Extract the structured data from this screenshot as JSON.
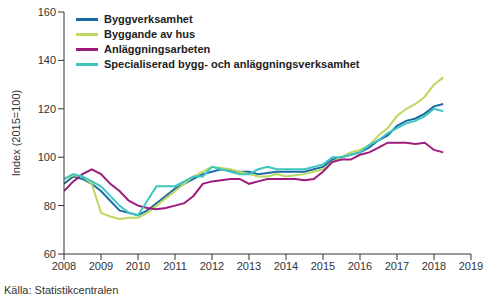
{
  "chart_data": {
    "type": "line",
    "y_label": "Index (2015=100)",
    "source": "Källa: Statistikcentralen",
    "x": [
      2008,
      2008.25,
      2008.5,
      2008.75,
      2009,
      2009.25,
      2009.5,
      2009.75,
      2010,
      2010.25,
      2010.5,
      2010.75,
      2011,
      2011.25,
      2011.5,
      2011.75,
      2012,
      2012.25,
      2012.5,
      2012.75,
      2013,
      2013.25,
      2013.5,
      2013.75,
      2014,
      2014.25,
      2014.5,
      2014.75,
      2015,
      2015.25,
      2015.5,
      2015.75,
      2016,
      2016.25,
      2016.5,
      2016.75,
      2017,
      2017.25,
      2017.5,
      2017.75,
      2018,
      2018.25
    ],
    "series": [
      {
        "name": "Byggverksamhet",
        "color": "#1b6aa5",
        "values": [
          89,
          92,
          91,
          89,
          86,
          82,
          78,
          77,
          76,
          78,
          81,
          84,
          87,
          89,
          91,
          93,
          94,
          95,
          94.5,
          94,
          94,
          93,
          93.5,
          94,
          94,
          94,
          94,
          95,
          96,
          99,
          100,
          101,
          102,
          104,
          107,
          109,
          113,
          115,
          116,
          118,
          121,
          122
        ]
      },
      {
        "name": "Byggande av hus",
        "color": "#bcd85f",
        "values": [
          91,
          92.5,
          92,
          89,
          77,
          75.5,
          74.5,
          75,
          75,
          77,
          80,
          83,
          86,
          89,
          92,
          94,
          96,
          95.5,
          95,
          94,
          93,
          92,
          92,
          93,
          92,
          92.5,
          93,
          94,
          95,
          98,
          100,
          102,
          103,
          105,
          109,
          112,
          117,
          120,
          122,
          125,
          130,
          133
        ]
      },
      {
        "name": "Anläggningsarbeten",
        "color": "#9e1b7e",
        "values": [
          86,
          90,
          93,
          95,
          93,
          89,
          86,
          82,
          80,
          79,
          78.5,
          79,
          80,
          81,
          84,
          89,
          90,
          90.5,
          91,
          91,
          89,
          90,
          91,
          91,
          91,
          91,
          90.5,
          91,
          94,
          98,
          99,
          99,
          101,
          102,
          104,
          106,
          106,
          106,
          105.5,
          106,
          103,
          102
        ]
      },
      {
        "name": "Specialiserad bygg- och anläggningsverksamhet",
        "color": "#3cc6c0",
        "values": [
          91,
          93,
          92,
          90,
          88,
          84,
          80,
          77,
          76,
          82,
          88,
          88,
          88,
          90,
          92,
          92,
          96,
          95,
          94,
          93,
          93,
          95,
          96,
          95,
          95,
          95,
          95,
          96,
          97,
          100,
          100,
          101,
          102,
          105,
          107,
          110,
          112,
          114,
          115,
          117,
          120,
          119
        ]
      }
    ],
    "xlim": [
      2008,
      2019
    ],
    "xticks": [
      2008,
      2009,
      2010,
      2011,
      2012,
      2013,
      2014,
      2015,
      2016,
      2017,
      2018,
      2019
    ],
    "ylim": [
      60,
      160
    ],
    "yticks": [
      60,
      80,
      100,
      120,
      140,
      160
    ],
    "grid": false,
    "legend": "top-left"
  }
}
